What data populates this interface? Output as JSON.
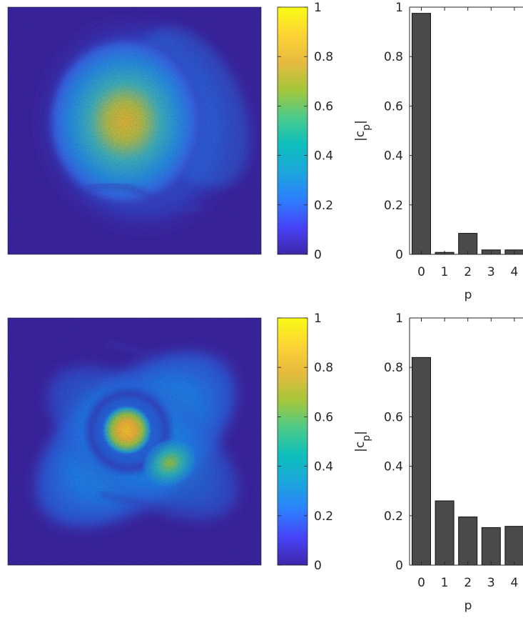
{
  "colorbar": {
    "ticks": [
      "0",
      "0.2",
      "0.4",
      "0.6",
      "0.8",
      "1"
    ],
    "colormap": [
      "#3e26a8",
      "#4743f8",
      "#2c7ffe",
      "#1ca6dc",
      "#0dbfbd",
      "#4ccb8a",
      "#a6c63a",
      "#e7ba3f",
      "#fcd434",
      "#f9fb15"
    ]
  },
  "colors": {
    "bar": "#4a4a4a",
    "axis": "#262626",
    "background": "#3e26a8"
  },
  "chart_data": [
    {
      "type": "heatmap",
      "pattern": "broad single-lobed speckled beam, peak near upper-left of center",
      "zlim": [
        0,
        1
      ]
    },
    {
      "type": "bar",
      "categories": [
        "0",
        "1",
        "2",
        "3",
        "4"
      ],
      "values": [
        0.975,
        0.008,
        0.085,
        0.018,
        0.018
      ],
      "xlabel": "p",
      "ylabel": "|c_p|",
      "ylim": [
        0,
        1
      ],
      "yticks": [
        "0",
        "0.2",
        "0.4",
        "0.6",
        "0.8",
        "1"
      ]
    },
    {
      "type": "heatmap",
      "pattern": "bright core with dark ring, secondary lobe at lower-right, diagonal arms",
      "zlim": [
        0,
        1
      ]
    },
    {
      "type": "bar",
      "categories": [
        "0",
        "1",
        "2",
        "3",
        "4"
      ],
      "values": [
        0.84,
        0.26,
        0.195,
        0.152,
        0.157
      ],
      "xlabel": "p",
      "ylabel": "|c_p|",
      "ylim": [
        0,
        1
      ],
      "yticks": [
        "0",
        "0.2",
        "0.4",
        "0.6",
        "0.8",
        "1"
      ]
    }
  ]
}
